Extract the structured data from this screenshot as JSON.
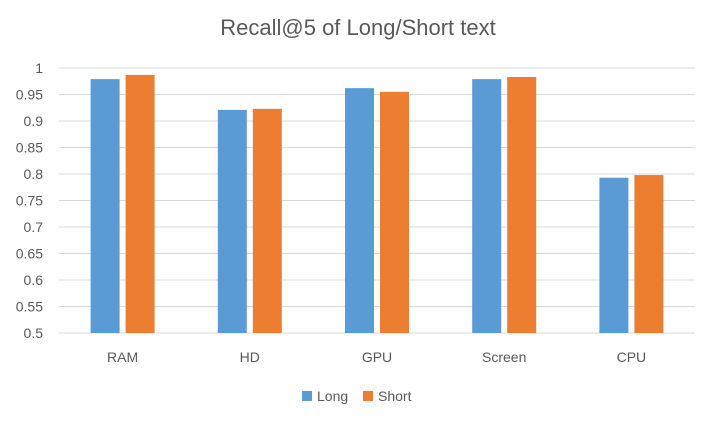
{
  "chart_data": {
    "type": "bar",
    "title": "Recall@5 of Long/Short text",
    "categories": [
      "RAM",
      "HD",
      "GPU",
      "Screen",
      "CPU"
    ],
    "series": [
      {
        "name": "Long",
        "color": "#5b9bd5",
        "values": [
          0.979,
          0.921,
          0.962,
          0.979,
          0.793
        ]
      },
      {
        "name": "Short",
        "color": "#ed7d31",
        "values": [
          0.987,
          0.923,
          0.955,
          0.983,
          0.798
        ]
      }
    ],
    "ylim": [
      0.5,
      1
    ],
    "yticks": [
      "0.5",
      "0.55",
      "0.6",
      "0.65",
      "0.7",
      "0.75",
      "0.8",
      "0.85",
      "0.9",
      "0.95",
      "1"
    ],
    "grid": true,
    "legend_position": "bottom"
  }
}
